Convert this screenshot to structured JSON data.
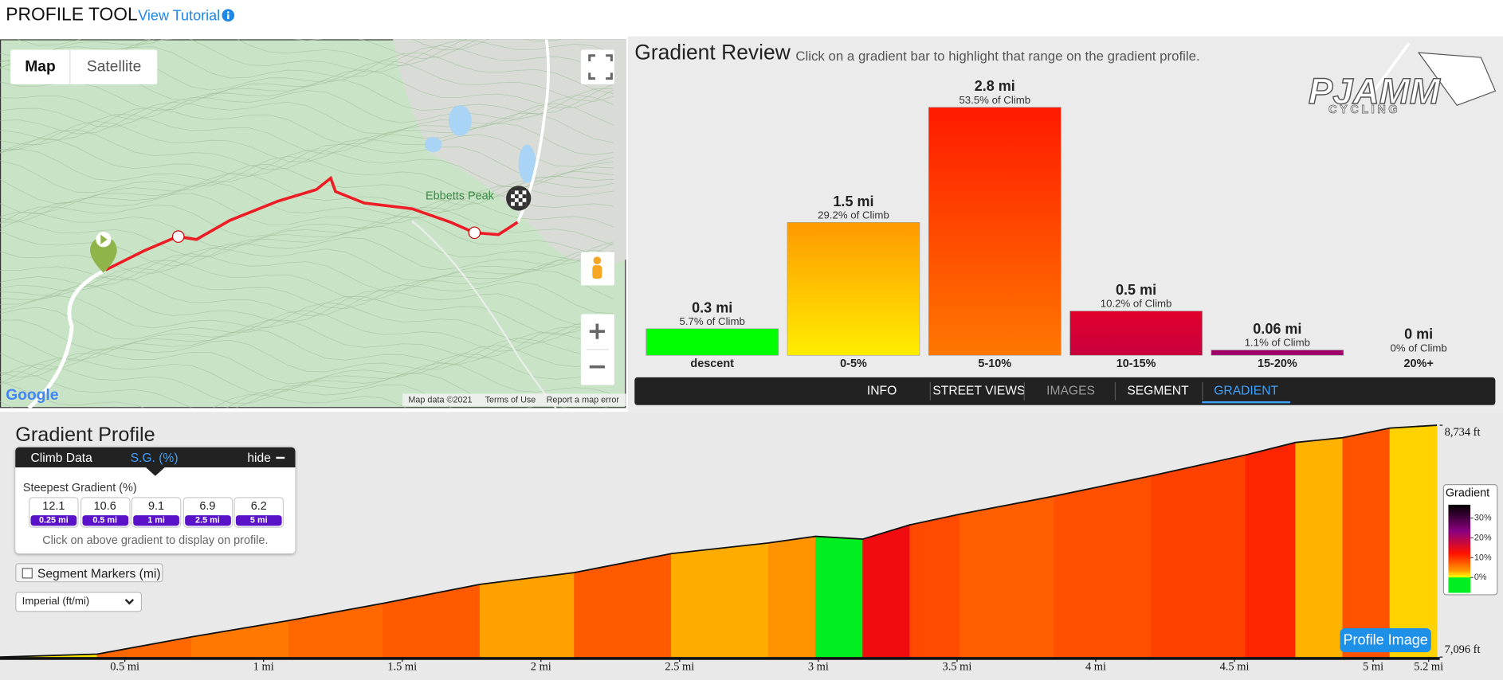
{
  "header": {
    "title": "PROFILE TOOL",
    "link": "View Tutorial"
  },
  "map": {
    "buttons": [
      "Map",
      "Satellite"
    ],
    "place": "Ebbetts Peak",
    "logo": "Google",
    "attribution": [
      "Map data ©2021",
      "Terms of Use",
      "Report a map error"
    ]
  },
  "logo": {
    "name": "PJAMM",
    "tagline": "CYCLING"
  },
  "gradient_review": {
    "title": "Gradient Review",
    "subtitle": "Click on a gradient bar to highlight that range on the gradient profile.",
    "chart_data": {
      "type": "bar",
      "categories": [
        "descent",
        "0-5%",
        "5-10%",
        "10-15%",
        "15-20%",
        "20%+"
      ],
      "values": [
        0.3,
        1.5,
        2.8,
        0.5,
        0.06,
        0
      ],
      "value_labels": [
        "0.3 mi",
        "1.5 mi",
        "2.8 mi",
        "0.5 mi",
        "0.06 mi",
        "0 mi"
      ],
      "shares": [
        5.7,
        29.2,
        53.5,
        10.2,
        1.1,
        0
      ],
      "share_labels": [
        "5.7% of Climb",
        "29.2% of Climb",
        "53.5% of Climb",
        "10.2% of Climb",
        "1.1% of Climb",
        "0% of Climb"
      ],
      "colors": [
        [
          "#00ff00",
          "#00ff00"
        ],
        [
          "#ff9900",
          "#ffee00"
        ],
        [
          "#ff1a00",
          "#ff7700"
        ],
        [
          "#e2002c",
          "#c8003e"
        ],
        [
          "#a0006a",
          "#a0006a"
        ],
        [
          "#8a0080",
          "#8a0080"
        ]
      ]
    },
    "tabs": [
      "INFO",
      "STREET VIEWS",
      "IMAGES",
      "SEGMENT",
      "GRADIENT"
    ],
    "active_tab": 4
  },
  "gradient_profile": {
    "title": "Gradient Profile",
    "panel": {
      "tabs": [
        "Climb Data",
        "S.G. (%)"
      ],
      "hide": "hide",
      "heading": "Steepest Gradient (%)",
      "steepest": [
        12.1,
        10.6,
        9.1,
        6.9,
        6.2
      ],
      "distances": [
        "0.25 mi",
        "0.5 mi",
        "1 mi",
        "2.5 mi",
        "5 mi"
      ],
      "note": "Click on above gradient to display on profile."
    },
    "segment_markers": "Segment Markers (mi)",
    "units": "Imperial (ft/mi)",
    "button": "Profile Image",
    "chart_data": {
      "type": "area",
      "x": [
        0.05,
        0.4,
        0.74,
        1.09,
        1.43,
        1.78,
        2.12,
        2.47,
        2.82,
        2.99,
        3.16,
        3.33,
        3.51,
        3.85,
        4.2,
        4.54,
        4.72,
        4.89,
        5.06,
        5.23
      ],
      "values": [
        7096,
        7116,
        7238,
        7353,
        7475,
        7610,
        7692,
        7827,
        7902,
        7949,
        7929,
        8030,
        8105,
        8233,
        8376,
        8524,
        8612,
        8646,
        8714,
        8734
      ],
      "xlim": [
        0.05,
        5.24
      ],
      "ylim": [
        7096,
        8734
      ],
      "xticks": [
        {
          "value": 0.5,
          "label": "0.5 mi"
        },
        {
          "value": 1,
          "label": "1 mi"
        },
        {
          "value": 1.5,
          "label": "1.5 mi"
        },
        {
          "value": 2,
          "label": "2 mi"
        },
        {
          "value": 2.5,
          "label": "2.5 mi"
        },
        {
          "value": 3,
          "label": "3 mi"
        },
        {
          "value": 3.5,
          "label": "3.5 mi"
        },
        {
          "value": 4,
          "label": "4 mi"
        },
        {
          "value": 4.5,
          "label": "4.5 mi"
        },
        {
          "value": 5,
          "label": "5 mi"
        },
        {
          "value": 5.2,
          "label": "5.2 mi"
        }
      ],
      "yticks": [
        {
          "value": 7096,
          "label": "7,096 ft"
        },
        {
          "value": 8734,
          "label": "8,734 ft"
        }
      ],
      "line_color": "#111111",
      "legend": {
        "title": "Gradient",
        "ticks": [
          {
            "value": 30,
            "label": "30%"
          },
          {
            "value": 20,
            "label": "20%"
          },
          {
            "value": 10,
            "label": "10%"
          },
          {
            "value": 0,
            "label": "0%"
          }
        ]
      }
    }
  }
}
